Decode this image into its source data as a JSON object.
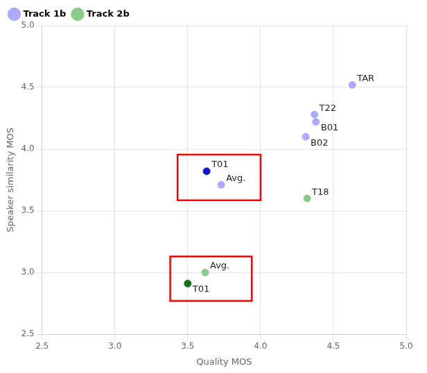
{
  "chart_data": {
    "type": "scatter",
    "xlabel": "Quality MOS",
    "ylabel": "Speaker similarity MOS",
    "xlim": [
      2.5,
      5.0
    ],
    "ylim": [
      2.5,
      5.0
    ],
    "xticks": [
      2.5,
      {
        "value": 3.0,
        "label": "3.0"
      },
      3.5,
      {
        "value": 4.0,
        "label": "4.0"
      },
      4.5,
      {
        "value": 5.0,
        "label": "5.0"
      }
    ],
    "yticks": [
      2.5,
      {
        "value": 3.0,
        "label": "3.0"
      },
      3.5,
      {
        "value": 4.0,
        "label": "4.0"
      },
      4.5,
      {
        "value": 5.0,
        "label": "5.0"
      }
    ],
    "grid": true,
    "legend": "upper left",
    "series": [
      {
        "name": "Track 1b",
        "color": "#aaaaff",
        "colors": [
          "#1414cc",
          "#aaaaff",
          "#aaaaff",
          "#aaaaff",
          "#aaaaff",
          "#aaaaff"
        ],
        "x": [
          3.63,
          3.73,
          4.37,
          4.38,
          4.31,
          4.63
        ],
        "values": [
          3.82,
          3.71,
          4.28,
          4.22,
          4.1,
          4.52
        ],
        "labels": [
          "T01",
          "Avg.",
          "T22",
          "B01",
          "B02",
          "TAR"
        ]
      },
      {
        "name": "Track 2b",
        "color": "#88cc88",
        "colors": [
          "#1a6e1a",
          "#88cc88",
          "#88cc88"
        ],
        "x": [
          3.5,
          3.62,
          4.32
        ],
        "values": [
          2.91,
          3.0,
          3.6
        ],
        "labels": [
          "T01",
          "Avg.",
          "T18"
        ]
      }
    ],
    "boxes": [
      {
        "x": 3.43,
        "y": 3.585,
        "width": 0.57,
        "height": 0.37,
        "color": "red"
      },
      {
        "x": 3.38,
        "y": 2.77,
        "width": 0.56,
        "height": 0.36,
        "color": "red"
      }
    ]
  }
}
